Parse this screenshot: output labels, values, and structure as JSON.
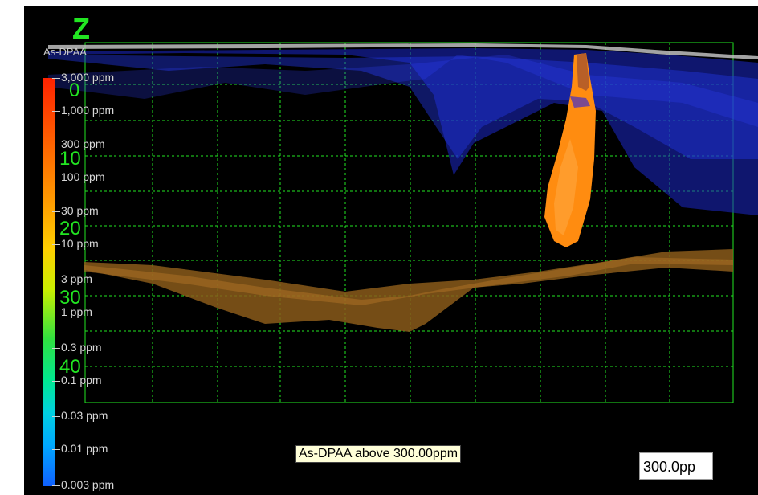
{
  "viewer": {
    "axis_title": "Z",
    "variable": "As-DPAA",
    "depth_labels": [
      "0",
      "10",
      "20",
      "30",
      "40"
    ],
    "legend": {
      "labels": [
        "3,000 ppm",
        "1,000 ppm",
        "300 ppm",
        "100 ppm",
        "30 ppm",
        "10 ppm",
        "3 ppm",
        "1 ppm",
        "0.3 ppm",
        "0.1 ppm",
        "0.03 ppm",
        "0.01 ppm",
        "0.003 ppm"
      ],
      "colors": [
        "#ff2200",
        "#ff6a00",
        "#ff9a00",
        "#ffd000",
        "#c8f000",
        "#30e040",
        "#00e890",
        "#00d0e0",
        "#00a8ff",
        "#1060ff"
      ]
    },
    "filter_caption": "As-DPAA above 300.00ppm",
    "value_box": "300.0pp",
    "colors": {
      "background": "#000000",
      "grid": "#22e622",
      "blue_layer": "#1c28c8",
      "brown_layer": "#8a5a1a",
      "plume": "#ff8c10",
      "surface": "#c0c0c0"
    }
  }
}
